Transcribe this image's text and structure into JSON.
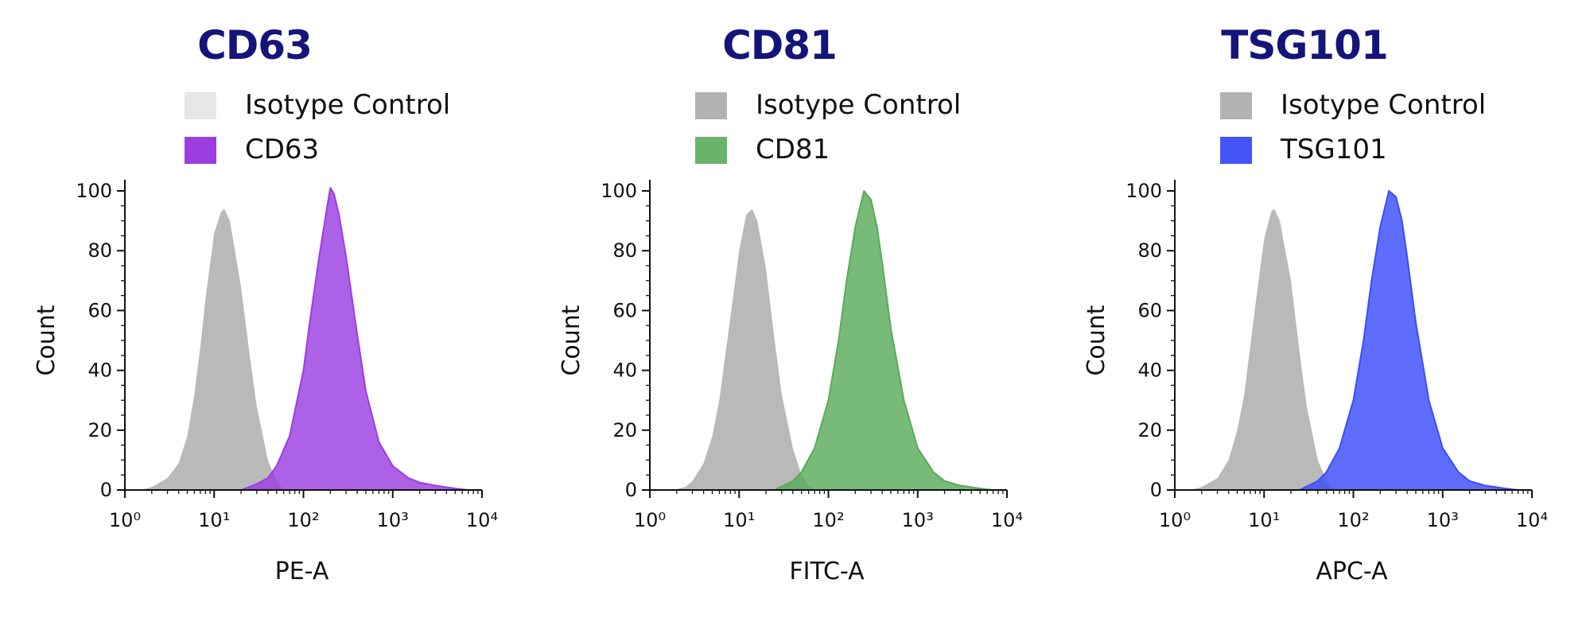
{
  "chart_data": [
    {
      "type": "area",
      "title": "CD63",
      "xlabel": "PE-A",
      "ylabel": "Count",
      "x_scale": "log",
      "xlim": [
        1,
        10000
      ],
      "ylim": [
        0,
        100
      ],
      "x_ticks": [
        1,
        10,
        100,
        1000,
        10000
      ],
      "y_ticks": [
        0,
        20,
        40,
        60,
        80,
        100
      ],
      "grid": false,
      "legend_position": "top",
      "legend": [
        "Isotype Control",
        "CD63"
      ],
      "series": [
        {
          "name": "Isotype Control",
          "color": "#b9b9b9",
          "x": [
            1.5,
            2,
            3,
            4,
            5,
            6,
            7,
            8,
            10,
            12,
            13,
            15,
            20,
            25,
            30,
            40,
            50,
            60
          ],
          "y": [
            0,
            1,
            4,
            9,
            18,
            32,
            48,
            64,
            86,
            93,
            94,
            90,
            68,
            45,
            28,
            10,
            3,
            0
          ]
        },
        {
          "name": "CD63",
          "color": "#9b3ee0",
          "x": [
            20,
            30,
            40,
            50,
            70,
            100,
            120,
            150,
            180,
            200,
            220,
            250,
            300,
            400,
            500,
            700,
            1000,
            1500,
            2000,
            3000,
            5000,
            7000
          ],
          "y": [
            0,
            2,
            4,
            8,
            18,
            40,
            58,
            78,
            93,
            101,
            99,
            92,
            78,
            52,
            33,
            16,
            8,
            4,
            2.5,
            1.5,
            0.5,
            0
          ]
        }
      ],
      "swatch_colors": [
        "#e6e6e6",
        "#9b3ee0"
      ]
    },
    {
      "type": "area",
      "title": "CD81",
      "xlabel": "FITC-A",
      "ylabel": "Count",
      "x_scale": "log",
      "xlim": [
        1,
        10000
      ],
      "ylim": [
        0,
        100
      ],
      "x_ticks": [
        1,
        10,
        100,
        1000,
        10000
      ],
      "y_ticks": [
        0,
        20,
        40,
        60,
        80,
        100
      ],
      "grid": false,
      "legend_position": "top",
      "legend": [
        "Isotype Control",
        "CD81"
      ],
      "series": [
        {
          "name": "Isotype Control",
          "color": "#b9b9b9",
          "x": [
            1.8,
            2.5,
            3,
            4,
            5,
            6,
            8,
            10,
            12,
            14,
            16,
            20,
            25,
            30,
            40,
            50,
            60,
            70
          ],
          "y": [
            0,
            1,
            3,
            9,
            18,
            30,
            58,
            80,
            92,
            94,
            90,
            74,
            50,
            32,
            14,
            5,
            1.5,
            0
          ]
        },
        {
          "name": "CD81",
          "color": "#5aab5a",
          "x": [
            25,
            40,
            50,
            70,
            100,
            130,
            160,
            200,
            250,
            300,
            350,
            400,
            500,
            700,
            1000,
            1500,
            2000,
            3000,
            5000,
            7000
          ],
          "y": [
            0,
            3,
            6,
            14,
            30,
            50,
            70,
            88,
            100,
            97,
            88,
            76,
            54,
            30,
            14,
            6,
            3,
            1.5,
            0.5,
            0
          ]
        }
      ],
      "swatch_colors": [
        "#b3b3b3",
        "#6ab36a"
      ]
    },
    {
      "type": "area",
      "title": "TSG101",
      "xlabel": "APC-A",
      "ylabel": "Count",
      "x_scale": "log",
      "xlim": [
        1,
        10000
      ],
      "ylim": [
        0,
        100
      ],
      "x_ticks": [
        1,
        10,
        100,
        1000,
        10000
      ],
      "y_ticks": [
        0,
        20,
        40,
        60,
        80,
        100
      ],
      "grid": false,
      "legend_position": "top",
      "legend": [
        "Isotype Control",
        "TSG101"
      ],
      "series": [
        {
          "name": "Isotype Control",
          "color": "#b9b9b9",
          "x": [
            1.5,
            2,
            3,
            4,
            5,
            6,
            8,
            10,
            12,
            13,
            15,
            20,
            25,
            30,
            40,
            50,
            60
          ],
          "y": [
            0,
            1,
            4,
            10,
            20,
            32,
            62,
            84,
            93,
            94,
            90,
            70,
            46,
            28,
            10,
            3,
            0
          ]
        },
        {
          "name": "TSG101",
          "color": "#3a4dfa",
          "x": [
            25,
            40,
            50,
            70,
            100,
            130,
            160,
            200,
            250,
            300,
            350,
            400,
            500,
            700,
            1000,
            1500,
            2000,
            3000,
            5000,
            7000
          ],
          "y": [
            0,
            3,
            6,
            14,
            30,
            50,
            70,
            88,
            100,
            98,
            90,
            78,
            56,
            30,
            14,
            6,
            3,
            1.5,
            0.5,
            0
          ]
        }
      ],
      "swatch_colors": [
        "#b3b3b3",
        "#4455f7"
      ]
    }
  ],
  "colors": {
    "title": "#14147a",
    "axis": "#111111",
    "isotype_fill": "#b9b9b9"
  }
}
